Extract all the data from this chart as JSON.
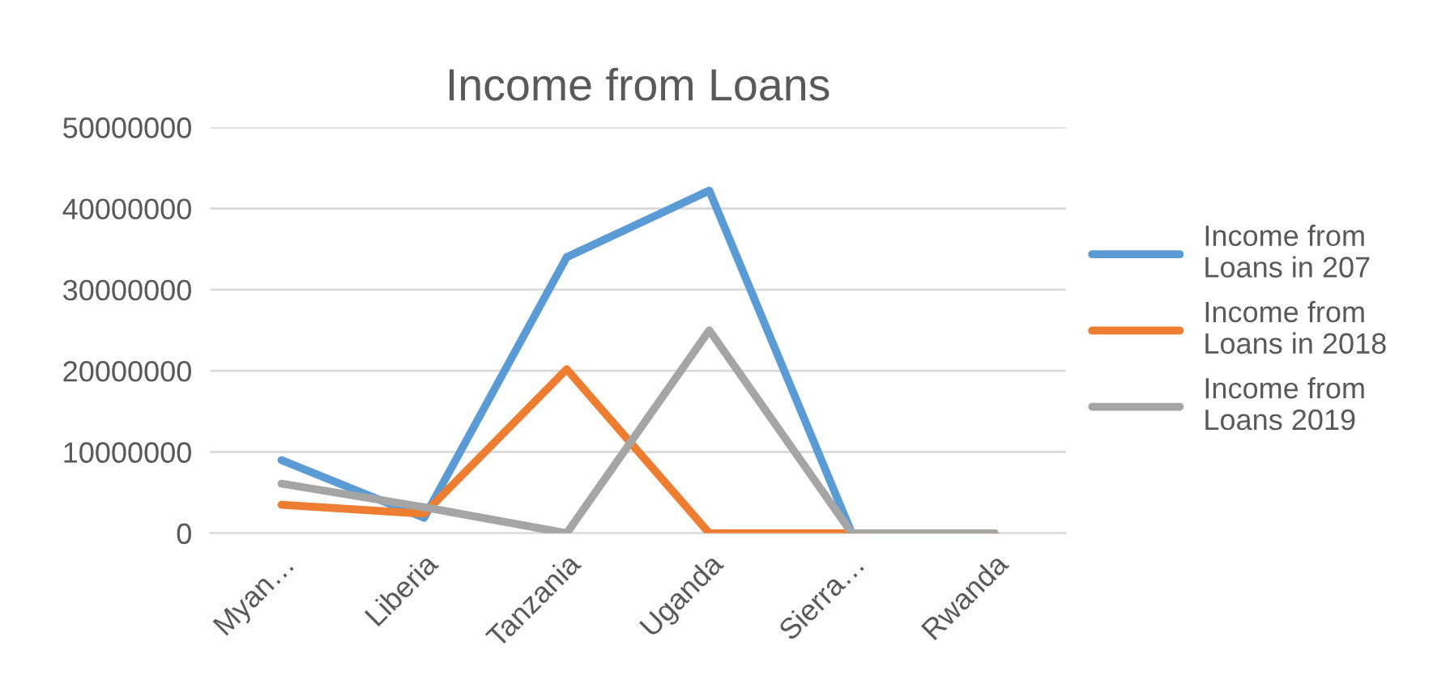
{
  "chart_data": {
    "type": "line",
    "title": "Income from Loans",
    "categories": [
      "Myan…",
      "Liberia",
      "Tanzania",
      "Uganda",
      "Sierra…",
      "Rwanda"
    ],
    "series": [
      {
        "name": "Income from Loans in 207",
        "color": "#5b9bd5",
        "values": [
          9000000,
          1900000,
          34000000,
          42200000,
          0,
          0
        ]
      },
      {
        "name": "Income from Loans in 2018",
        "color": "#ed7d31",
        "values": [
          3500000,
          2400000,
          20200000,
          0,
          0,
          0
        ]
      },
      {
        "name": "Income from Loans 2019",
        "color": "#a5a5a5",
        "values": [
          6100000,
          3200000,
          0,
          25000000,
          0,
          0
        ]
      }
    ],
    "ylim": [
      0,
      50000000
    ],
    "yticks": [
      0,
      10000000,
      20000000,
      30000000,
      40000000,
      50000000
    ],
    "grid": "y",
    "legend": "right",
    "marker": "none",
    "line_style": "solid"
  }
}
